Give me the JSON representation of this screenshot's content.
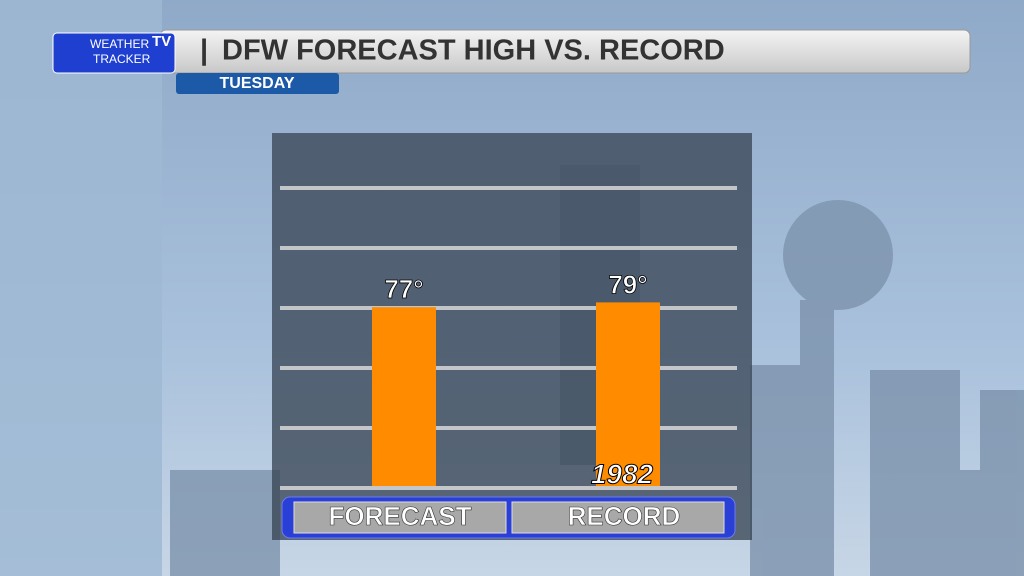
{
  "brand": {
    "line1": "WEATHER",
    "line2": "TRACKER",
    "badge": "TV"
  },
  "chart_data": {
    "type": "bar",
    "title": "DFW FORECAST HIGH VS. RECORD",
    "subtitle": "TUESDAY",
    "categories": [
      "FORECAST",
      "RECORD"
    ],
    "values": [
      77,
      79
    ],
    "value_labels": [
      "77°",
      "79°"
    ],
    "annotations": [
      "1982"
    ],
    "color": "#ff8c00",
    "ylim": [
      0,
      125
    ],
    "yticks": [
      0,
      25,
      50,
      75,
      100,
      125
    ],
    "grid": true
  }
}
